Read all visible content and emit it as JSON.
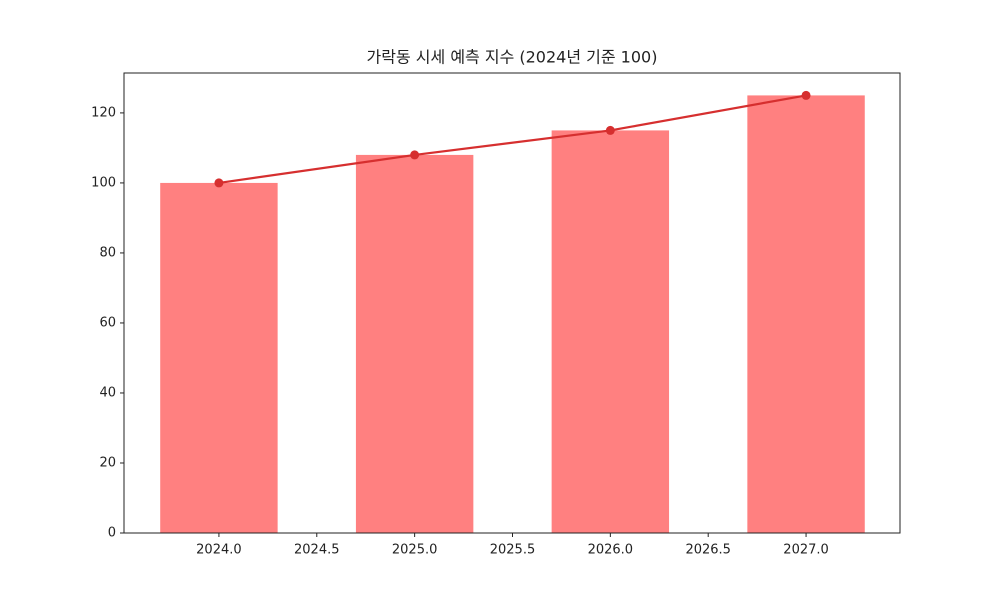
{
  "chart_data": {
    "type": "combo",
    "title": "가락동 시세 예측 지수 (2024년 기준 100)",
    "x": [
      2024,
      2025,
      2026,
      2027
    ],
    "series": [
      {
        "type": "bar",
        "color": "#ff8080",
        "values": [
          100,
          108,
          115,
          125
        ]
      },
      {
        "type": "line",
        "color": "#d62f2f",
        "values": [
          100,
          108,
          115,
          125
        ]
      }
    ],
    "xlim": [
      2023.515,
      2027.48
    ],
    "xticks": [
      {
        "value": 2024,
        "label": "2024.0"
      },
      {
        "value": 2024.5,
        "label": "2024.5"
      },
      {
        "value": 2025,
        "label": "2025.0"
      },
      {
        "value": 2025.5,
        "label": "2025.5"
      },
      {
        "value": 2026,
        "label": "2026.0"
      },
      {
        "value": 2026.5,
        "label": "2026.5"
      },
      {
        "value": 2027,
        "label": "2027.0"
      }
    ],
    "ylim": [
      0,
      131.4
    ],
    "yticks": [
      0,
      20,
      40,
      60,
      80,
      100,
      120
    ],
    "grid": false
  }
}
